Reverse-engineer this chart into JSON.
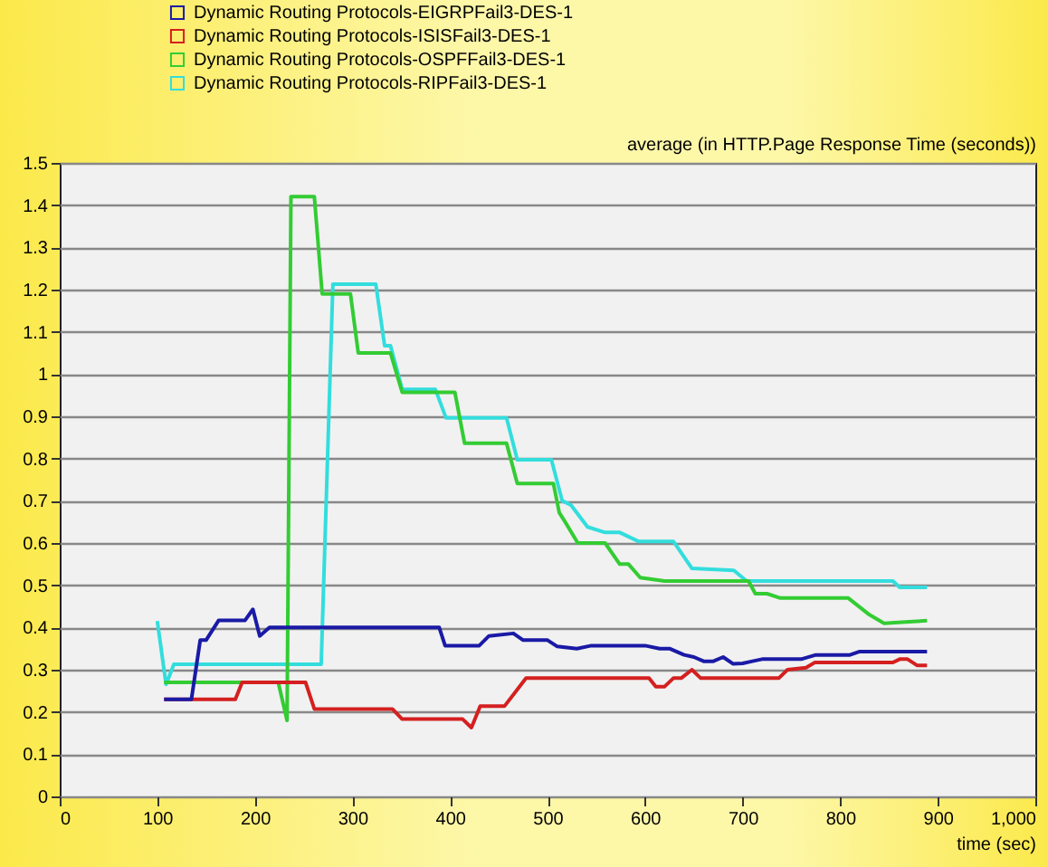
{
  "chart_data": {
    "type": "line",
    "title": "average (in HTTP.Page Response Time (seconds))",
    "xlabel": "time (sec)",
    "xlim": [
      0,
      1000
    ],
    "xticks": [
      0,
      100,
      200,
      300,
      400,
      500,
      600,
      700,
      800,
      900,
      {
        "value": 1000,
        "label": "1,000"
      }
    ],
    "ylim": [
      0,
      1.5
    ],
    "yticks": [
      0,
      0.1,
      0.2,
      0.3,
      0.4,
      0.5,
      0.6,
      0.7,
      0.8,
      0.9,
      1,
      1.1,
      1.2,
      1.3,
      1.4,
      1.5
    ],
    "grid": "y",
    "legend": "top left",
    "marker": "none",
    "line_style": "solid",
    "series": [
      {
        "name": "Dynamic Routing Protocols-EIGRPFail3-DES-1",
        "color": "#1a1aa6",
        "x": [
          107,
          135,
          144,
          150,
          163,
          190,
          198,
          205,
          215,
          300,
          389,
          395,
          430,
          440,
          465,
          475,
          500,
          510,
          530,
          545,
          600,
          615,
          625,
          640,
          650,
          660,
          670,
          680,
          690,
          700,
          710,
          720,
          760,
          775,
          810,
          820,
          889
        ],
        "values": [
          0.23,
          0.23,
          0.37,
          0.37,
          0.417,
          0.417,
          0.443,
          0.38,
          0.4,
          0.4,
          0.4,
          0.357,
          0.357,
          0.38,
          0.386,
          0.37,
          0.37,
          0.355,
          0.35,
          0.357,
          0.357,
          0.35,
          0.35,
          0.335,
          0.33,
          0.32,
          0.32,
          0.33,
          0.314,
          0.315,
          0.32,
          0.325,
          0.325,
          0.335,
          0.335,
          0.343,
          0.343
        ]
      },
      {
        "name": "Dynamic Routing Protocols-ISISFail3-DES-1",
        "color": "#d42020",
        "x": [
          107,
          180,
          187,
          252,
          261,
          341,
          351,
          413,
          422,
          431,
          456,
          478,
          604,
          611,
          620,
          629,
          637,
          648,
          657,
          737,
          746,
          765,
          774,
          854,
          861,
          869,
          879,
          889
        ],
        "values": [
          0.23,
          0.23,
          0.27,
          0.27,
          0.207,
          0.207,
          0.183,
          0.183,
          0.163,
          0.214,
          0.214,
          0.28,
          0.28,
          0.26,
          0.26,
          0.28,
          0.28,
          0.3,
          0.28,
          0.28,
          0.3,
          0.305,
          0.317,
          0.317,
          0.325,
          0.325,
          0.31,
          0.31
        ]
      },
      {
        "name": "Dynamic Routing Protocols-OSPFFail3-DES-1",
        "color": "#33cc33",
        "x": [
          107,
          224,
          233,
          237,
          261,
          269,
          298,
          306,
          339,
          351,
          405,
          415,
          458,
          469,
          506,
          512,
          518,
          531,
          559,
          574,
          583,
          595,
          620,
          706,
          713,
          725,
          738,
          808,
          830,
          845,
          867,
          889
        ],
        "values": [
          0.27,
          0.27,
          0.18,
          1.42,
          1.42,
          1.19,
          1.19,
          1.05,
          1.05,
          0.957,
          0.957,
          0.836,
          0.836,
          0.741,
          0.741,
          0.672,
          0.65,
          0.6,
          0.6,
          0.55,
          0.55,
          0.518,
          0.51,
          0.51,
          0.48,
          0.48,
          0.47,
          0.47,
          0.43,
          0.41,
          0.413,
          0.416
        ]
      },
      {
        "name": "Dynamic Routing Protocols-RIPFail3-DES-1",
        "color": "#33dddd",
        "x": [
          100,
          109,
          117,
          268,
          280,
          324,
          333,
          339,
          351,
          385,
          396,
          458,
          469,
          504,
          515,
          524,
          541,
          559,
          574,
          593,
          629,
          648,
          691,
          704,
          854,
          861,
          889
        ],
        "values": [
          0.415,
          0.265,
          0.313,
          0.313,
          1.213,
          1.213,
          1.067,
          1.067,
          0.964,
          0.964,
          0.896,
          0.896,
          0.797,
          0.797,
          0.7,
          0.69,
          0.638,
          0.625,
          0.625,
          0.604,
          0.604,
          0.54,
          0.535,
          0.51,
          0.51,
          0.495,
          0.495
        ]
      }
    ]
  }
}
